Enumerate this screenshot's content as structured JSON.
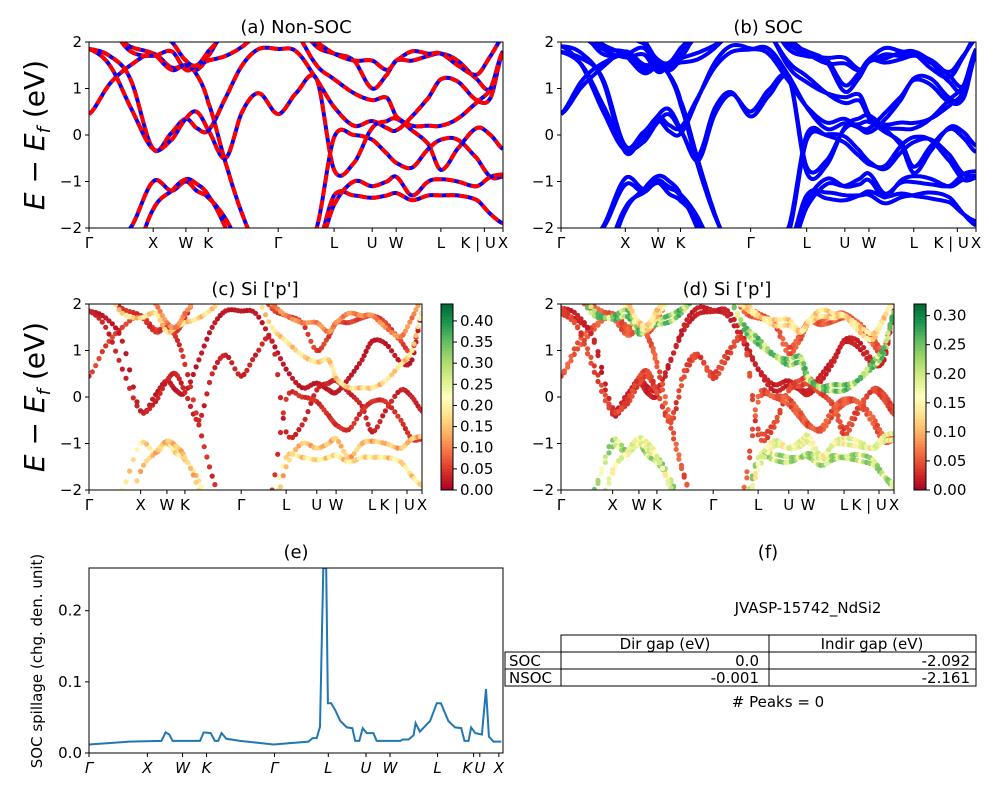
{
  "chart_data": [
    {
      "id": "a",
      "type": "line",
      "title": "(a) Non-SOC",
      "ylabel": {
        "E": "E",
        "minus": " − ",
        "Ef": "E",
        "sub": "f",
        "unit": " (eV)"
      },
      "ylim": [
        -2,
        2
      ],
      "yticks": [
        "−2",
        "−1",
        "0",
        "1",
        "2"
      ],
      "series_colors": {
        "soc_overlay": "#0000ff",
        "non_soc": "#ff0000"
      },
      "xticks": [
        {
          "label": "Γ",
          "k": 0
        },
        {
          "label": "X",
          "k": 0.155
        },
        {
          "label": "W",
          "k": 0.234
        },
        {
          "label": "K",
          "k": 0.288
        },
        {
          "label": "Γ",
          "k": 0.457
        },
        {
          "label": "L",
          "k": 0.592
        },
        {
          "label": "U",
          "k": 0.684
        },
        {
          "label": "W",
          "k": 0.742
        },
        {
          "label": "L",
          "k": 0.85
        },
        {
          "label": "K | U",
          "k": 0.955
        },
        {
          "label": "X",
          "k": 1
        }
      ]
    },
    {
      "id": "b",
      "type": "line",
      "title": "(b) SOC",
      "ylim": [
        -2,
        2
      ],
      "yticks": [
        "−2",
        "−1",
        "0",
        "1",
        "2"
      ],
      "series_colors": {
        "soc": "#0000ff"
      }
    },
    {
      "id": "c",
      "type": "scatter",
      "title": "(c)  Si ['p']",
      "ylim": [
        -2,
        2
      ],
      "colormap": "RdYlGn",
      "clim": [
        0,
        0.44
      ],
      "colorbar_ticks": [
        "0.00",
        "0.05",
        "0.10",
        "0.15",
        "0.20",
        "0.25",
        "0.30",
        "0.35",
        "0.40"
      ]
    },
    {
      "id": "d",
      "type": "scatter",
      "title": "(d) Si ['p']",
      "ylim": [
        -2,
        2
      ],
      "colormap": "RdYlGn",
      "clim": [
        0,
        0.32
      ],
      "colorbar_ticks": [
        "0.00",
        "0.05",
        "0.10",
        "0.15",
        "0.20",
        "0.25",
        "0.30"
      ]
    },
    {
      "id": "e",
      "type": "line",
      "title": "(e)",
      "ylabel": "SOC spillage (chg. den. unit)",
      "ylim": [
        0,
        0.26
      ],
      "yticks": [
        "0.0",
        "0.1",
        "0.2"
      ],
      "color": "#1f77b4",
      "xticks": [
        {
          "label": "Γ",
          "k": 0
        },
        {
          "label": "X",
          "k": 0.141
        },
        {
          "label": "W",
          "k": 0.226
        },
        {
          "label": "K",
          "k": 0.284
        },
        {
          "label": "Γ",
          "k": 0.448
        },
        {
          "label": "L",
          "k": 0.578
        },
        {
          "label": "U",
          "k": 0.669
        },
        {
          "label": "W",
          "k": 0.727
        },
        {
          "label": "L",
          "k": 0.842
        },
        {
          "label": "K",
          "k": 0.929
        },
        {
          "label": "U",
          "k": 0.944
        },
        {
          "label": "X",
          "k": 0.99
        }
      ],
      "k": [
        0,
        0.098,
        0.175,
        0.185,
        0.194,
        0.202,
        0.268,
        0.277,
        0.294,
        0.304,
        0.312,
        0.32,
        0.332,
        0.365,
        0.446,
        0.53,
        0.54,
        0.55,
        0.558,
        0.566,
        0.573,
        0.577,
        0.585,
        0.595,
        0.607,
        0.623,
        0.636,
        0.643,
        0.653,
        0.661,
        0.671,
        0.687,
        0.695,
        0.752,
        0.758,
        0.772,
        0.784,
        0.789,
        0.799,
        0.824,
        0.84,
        0.85,
        0.868,
        0.884,
        0.899,
        0.907,
        0.917,
        0.923,
        0.933,
        0.949,
        0.959,
        0.966,
        0.977,
        0.996
      ],
      "spillage": [
        0.012,
        0.016,
        0.017,
        0.029,
        0.026,
        0.017,
        0.017,
        0.029,
        0.028,
        0.017,
        0.017,
        0.028,
        0.02,
        0.017,
        0.012,
        0.016,
        0.021,
        0.021,
        0.037,
        0.26,
        0.26,
        0.07,
        0.07,
        0.06,
        0.045,
        0.036,
        0.035,
        0.017,
        0.017,
        0.035,
        0.028,
        0.028,
        0.017,
        0.017,
        0.019,
        0.019,
        0.025,
        0.042,
        0.03,
        0.045,
        0.07,
        0.07,
        0.045,
        0.036,
        0.035,
        0.017,
        0.017,
        0.036,
        0.028,
        0.026,
        0.09,
        0.023,
        0.016,
        0.016
      ]
    }
  ],
  "bands": {
    "k": [
      0,
      0.05,
      0.1,
      0.155,
      0.2,
      0.234,
      0.26,
      0.288,
      0.33,
      0.37,
      0.41,
      0.457,
      0.5,
      0.55,
      0.592,
      0.64,
      0.684,
      0.72,
      0.742,
      0.78,
      0.82,
      0.85,
      0.89,
      0.937,
      0.97,
      1
    ],
    "energies": [
      [
        0.45,
        1.1,
        1.5,
        1.75,
        1.45,
        1.5,
        1.4,
        1.7,
        2.3,
        2.5,
        2.4,
        2.3,
        2.4,
        1.9,
        1.75,
        1.6,
        1.0,
        1.3,
        1.6,
        1.6,
        1.7,
        1.75,
        1.6,
        1.2,
        1.0,
        1.8
      ],
      [
        1.85,
        1.7,
        1.2,
        -0.3,
        0.05,
        0.35,
        0.15,
        0.1,
        0.8,
        1.5,
        1.85,
        1.85,
        1.8,
        1.2,
        0.6,
        0.2,
        0.3,
        0.15,
        0.1,
        0.4,
        0.8,
        1.2,
        1.15,
        0.75,
        0.8,
        1.8
      ],
      [
        1.85,
        1.5,
        0.6,
        -0.3,
        -0.1,
        0.35,
        0.5,
        0.1,
        -0.5,
        0.5,
        0.9,
        0.45,
        0.9,
        1.2,
        -0.75,
        -0.6,
        0.15,
        0.3,
        0.35,
        0.1,
        -0.2,
        -0.75,
        -0.3,
        0.15,
        0.0,
        -0.3
      ],
      [
        2.5,
        2.2,
        1.9,
        1.75,
        1.4,
        1.5,
        1.3,
        0.7,
        -0.6,
        -1.7,
        -2.5,
        -3,
        -2.5,
        -2.0,
        -0.05,
        0.0,
        -0.1,
        -0.4,
        -0.6,
        -0.7,
        -0.3,
        -0.1,
        -0.1,
        -0.5,
        -0.9,
        -0.9
      ],
      [
        -2.5,
        -2.3,
        -2.0,
        -1.0,
        -1.2,
        -1.0,
        -1.2,
        -1.35,
        -1.8,
        -2.5,
        -3,
        -3,
        -3,
        -2.5,
        -1.3,
        -1.3,
        -1.35,
        -1.3,
        -1.25,
        -1.4,
        -1.3,
        -1.3,
        -1.3,
        -1.4,
        -1.7,
        -1.9
      ],
      [
        -3,
        -3,
        -2.8,
        -1.6,
        -1.2,
        -0.95,
        -1.05,
        -1.3,
        -2.0,
        -3,
        -3,
        -3,
        -3,
        -2.6,
        -1.5,
        -1.0,
        -1.1,
        -1.0,
        -0.9,
        -1.3,
        -1.0,
        -0.95,
        -1.0,
        -1.1,
        -0.9,
        -0.85
      ],
      [
        2.5,
        2.3,
        1.8,
        1.7,
        1.8,
        1.4,
        1.5,
        1.6,
        1.7,
        1.9,
        2.2,
        2.5,
        2.2,
        1.5,
        1.2,
        0.9,
        0.75,
        0.8,
        0.4,
        0.2,
        0.2,
        0.2,
        0.35,
        0.7,
        1.0,
        1.8
      ],
      [
        3,
        3,
        2.5,
        2.2,
        2.0,
        1.6,
        1.5,
        1.8,
        2.2,
        2.5,
        2.6,
        2.6,
        2.3,
        2.0,
        1.75,
        1.6,
        1.6,
        1.4,
        1.6,
        1.8,
        1.75,
        1.75,
        1.5,
        1.3,
        1.7,
        2.1
      ]
    ],
    "si_p_weight_nonsoc": [
      0.05,
      0.02,
      0.03,
      0.04,
      0.17,
      0.14,
      0.16,
      0.1
    ],
    "si_p_weight_soc": [
      0.05,
      0.02,
      0.04,
      0.05,
      0.2,
      0.16,
      0.22,
      0.12
    ]
  },
  "panel_f": {
    "title": "(f)",
    "material": "JVASP-15742_NdSi2",
    "columns": [
      "",
      "Dir gap (eV)",
      "Indir gap (eV)"
    ],
    "rows": [
      [
        "SOC",
        "0.0",
        "-2.092"
      ],
      [
        "NSOC",
        "-0.001",
        "-2.161"
      ]
    ],
    "peaks": "# Peaks = 0"
  }
}
